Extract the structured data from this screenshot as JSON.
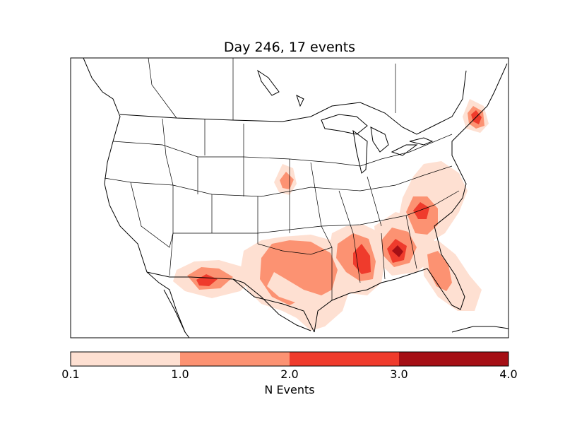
{
  "title": "Day 246, 17 events",
  "colorbar": {
    "label": "N Events",
    "ticks": [
      "0.1",
      "1.0",
      "2.0",
      "3.0",
      "4.0"
    ],
    "levels": [
      0.1,
      1.0,
      2.0,
      3.0,
      4.0
    ],
    "colors": [
      "#fee0d2",
      "#fc9272",
      "#ef3b2c",
      "#a50f15"
    ]
  },
  "map_data": {
    "region": "Continental United States",
    "event_clusters": [
      {
        "area": "Arizona / New Mexico border",
        "max_level": 2.0
      },
      {
        "area": "Texas",
        "max_level": 1.0
      },
      {
        "area": "Louisiana / Mississippi",
        "max_level": 2.0
      },
      {
        "area": "Georgia / Alabama",
        "max_level": 3.0
      },
      {
        "area": "Carolinas / Virginia",
        "max_level": 2.0
      },
      {
        "area": "Florida",
        "max_level": 1.0
      },
      {
        "area": "Nebraska / Iowa",
        "max_level": 1.0
      },
      {
        "area": "Maine / New Brunswick",
        "max_level": 2.0
      }
    ]
  }
}
